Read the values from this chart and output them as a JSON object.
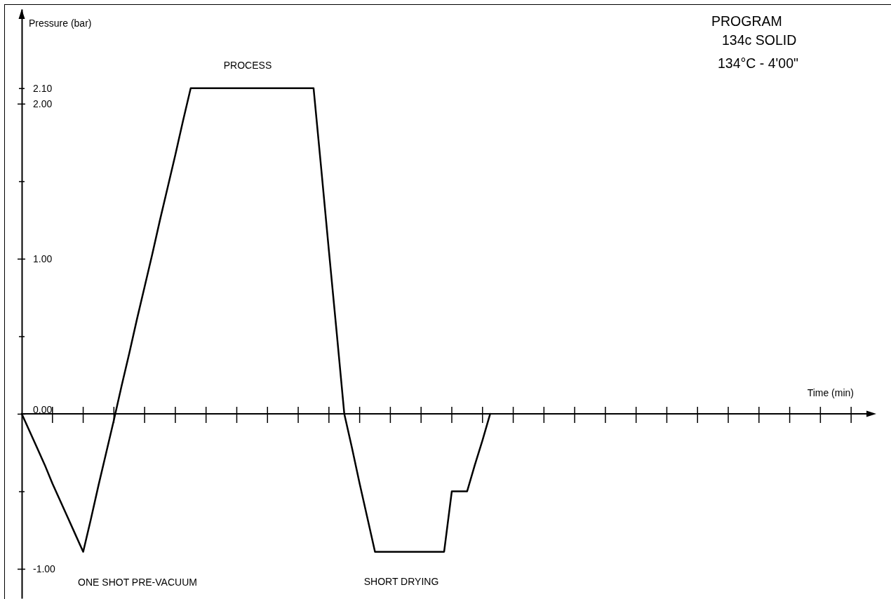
{
  "chart_data": {
    "type": "line",
    "title": "PROGRAM",
    "subtitle": "134c SOLID",
    "xlabel": "Time (min)",
    "ylabel": "Pressure (bar)",
    "annotations": [
      "134°C - 4'00\"",
      "PROCESS",
      "ONE SHOT PRE-VACUUM",
      "SHORT DRYING"
    ],
    "categories": [
      null,
      null,
      null,
      null,
      null,
      null,
      null,
      null,
      null,
      null,
      null,
      null,
      null,
      null,
      null,
      null,
      null,
      null,
      null,
      null,
      null,
      null,
      null,
      null,
      null,
      null,
      null,
      null,
      null,
      null,
      null,
      null,
      null,
      null,
      null,
      null,
      null,
      null,
      null,
      null,
      null,
      null,
      null,
      null,
      null,
      null,
      null,
      null,
      null,
      null,
      null,
      null,
      null,
      null,
      null,
      null,
      null,
      null,
      null,
      null,
      null,
      null,
      null,
      null,
      null,
      null,
      null,
      null,
      null,
      null,
      null,
      null,
      null,
      null,
      null,
      null,
      null,
      null,
      null,
      null,
      null,
      null,
      null,
      null,
      null,
      null,
      null,
      null,
      null,
      null,
      null,
      null,
      null,
      null,
      null,
      null,
      null,
      null,
      null,
      null,
      null,
      null,
      null,
      null,
      null,
      null,
      null,
      null,
      null,
      null,
      null,
      null
    ],
    "series": [
      {
        "color": "#000000",
        "values": [
          0,
          -0.11,
          -0.22,
          -0.33,
          -0.45,
          -0.56,
          -0.67,
          -0.78,
          -0.89,
          -0.68,
          -0.46,
          -0.25,
          -0.04,
          0.18,
          0.39,
          0.61,
          0.82,
          1.03,
          1.25,
          1.46,
          1.67,
          1.89,
          2.1,
          2.1,
          2.1,
          2.1,
          2.1,
          2.1,
          2.1,
          2.1,
          2.1,
          2.1,
          2.1,
          2.1,
          2.1,
          2.1,
          2.1,
          2.1,
          2.1,
          1.58,
          1.05,
          0.53,
          0,
          -0.22,
          -0.45,
          -0.67,
          -0.89,
          -0.89,
          -0.89,
          -0.89,
          -0.89,
          -0.89,
          -0.89,
          -0.89,
          -0.89,
          -0.89,
          -0.5,
          -0.5,
          -0.5,
          -0.33,
          -0.17,
          0,
          null,
          null,
          null,
          null,
          null,
          null,
          null,
          null,
          null,
          null,
          null,
          null,
          null,
          null,
          null,
          null,
          null,
          null,
          null,
          null,
          null,
          null,
          null,
          null,
          null,
          null,
          null,
          null,
          null,
          null,
          null,
          null,
          null,
          null,
          null,
          null,
          null,
          null,
          null,
          null,
          null,
          null,
          null,
          null,
          null,
          null,
          null,
          null,
          null,
          null
        ]
      }
    ],
    "ylim": [
      -1.19,
      2.61
    ],
    "yticks": [
      {
        "value": -1,
        "label": "-1.00"
      },
      {
        "value": -0.5,
        "label": null
      },
      {
        "value": 0,
        "label": "0.00"
      },
      {
        "value": 0.5,
        "label": null
      },
      {
        "value": 1,
        "label": "1.00"
      },
      {
        "value": 1.5,
        "label": null
      },
      {
        "value": 2,
        "label": "2.00"
      },
      {
        "value": 2.1,
        "label": "2.10"
      }
    ],
    "line_style": "solid"
  }
}
